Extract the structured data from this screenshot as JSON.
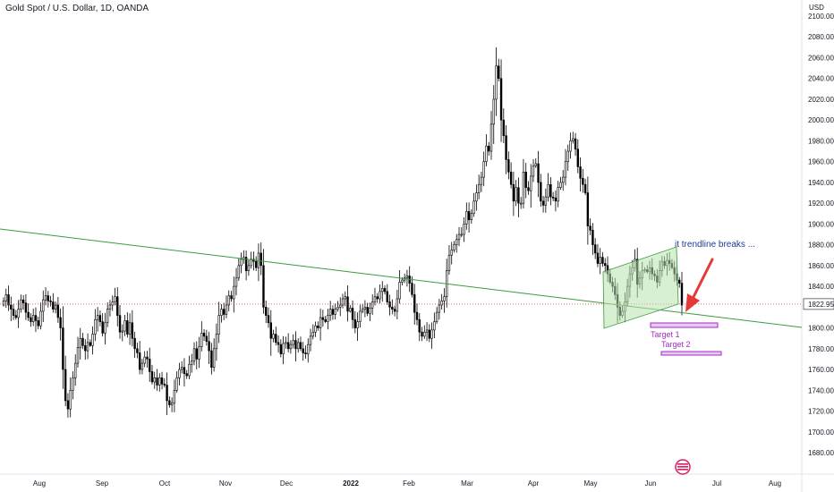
{
  "header": {
    "title": "Gold Spot / U.S. Dollar, 1D, OANDA",
    "currency": "USD"
  },
  "colors": {
    "up": "#ffffff",
    "down": "#000000",
    "trendline": "#3a9b3a",
    "channel_fill": "#b9e1b0",
    "channel_stroke": "#3a9b3a",
    "target": "#a32cc4",
    "target_fill": "#e6c8f0",
    "arrow": "#e53935",
    "price_line": "#e53935",
    "annotation": "#1f3a93"
  },
  "logo": {
    "icon": "tradingview-logo-icon"
  },
  "chart_data": {
    "type": "candlestick",
    "title": "Gold Spot / U.S. Dollar, 1D, OANDA",
    "ylim": [
      1665,
      2120
    ],
    "y_ticks": [
      "2100.000",
      "2080.000",
      "2060.000",
      "2040.000",
      "2020.000",
      "2000.000",
      "1980.000",
      "1960.000",
      "1940.000",
      "1920.000",
      "1900.000",
      "1880.000",
      "1860.000",
      "1840.000",
      "1822.955",
      "1800.000",
      "1780.000",
      "1760.000",
      "1740.000",
      "1720.000",
      "1700.000",
      "1680.000"
    ],
    "x_ticks": [
      "Aug",
      "Sep",
      "Oct",
      "Nov",
      "Dec",
      "2022",
      "Feb",
      "Mar",
      "Apr",
      "May",
      "Jun",
      "Jul",
      "Aug"
    ],
    "x_ticks_bold": [
      "2022"
    ],
    "current_price": "1822.955",
    "closes": [
      1826,
      1832,
      1822,
      1818,
      1812,
      1810,
      1818,
      1827,
      1824,
      1815,
      1810,
      1806,
      1812,
      1807,
      1802,
      1816,
      1827,
      1831,
      1826,
      1825,
      1818,
      1822,
      1810,
      1800,
      1760,
      1730,
      1722,
      1740,
      1752,
      1766,
      1781,
      1790,
      1783,
      1778,
      1786,
      1783,
      1794,
      1808,
      1812,
      1806,
      1795,
      1805,
      1818,
      1822,
      1825,
      1830,
      1812,
      1796,
      1797,
      1807,
      1794,
      1805,
      1790,
      1780,
      1776,
      1760,
      1766,
      1772,
      1770,
      1758,
      1748,
      1752,
      1745,
      1752,
      1746,
      1745,
      1730,
      1726,
      1728,
      1740,
      1752,
      1760,
      1762,
      1756,
      1754,
      1765,
      1768,
      1780,
      1770,
      1782,
      1795,
      1792,
      1787,
      1778,
      1762,
      1780,
      1794,
      1812,
      1818,
      1813,
      1822,
      1831,
      1828,
      1840,
      1848,
      1860,
      1866,
      1868,
      1855,
      1860,
      1866,
      1864,
      1858,
      1872,
      1860,
      1820,
      1812,
      1805,
      1790,
      1794,
      1786,
      1784,
      1775,
      1785,
      1786,
      1780,
      1784,
      1788,
      1780,
      1786,
      1780,
      1776,
      1775,
      1784,
      1792,
      1796,
      1802,
      1800,
      1810,
      1808,
      1806,
      1812,
      1818,
      1813,
      1818,
      1820,
      1822,
      1828,
      1830,
      1816,
      1819,
      1808,
      1800,
      1806,
      1816,
      1818,
      1820,
      1814,
      1819,
      1825,
      1830,
      1828,
      1835,
      1838,
      1835,
      1825,
      1820,
      1818,
      1816,
      1828,
      1844,
      1846,
      1848,
      1850,
      1843,
      1832,
      1815,
      1808,
      1796,
      1792,
      1796,
      1798,
      1790,
      1798,
      1806,
      1815,
      1822,
      1826,
      1830,
      1855,
      1870,
      1875,
      1880,
      1885,
      1890,
      1890,
      1900,
      1912,
      1904,
      1910,
      1922,
      1930,
      1938,
      1945,
      1960,
      1975,
      1970,
      1996,
      2020,
      2052,
      2040,
      2000,
      1985,
      1962,
      1950,
      1938,
      1922,
      1935,
      1920,
      1920,
      1950,
      1935,
      1932,
      1946,
      1956,
      1958,
      1940,
      1922,
      1918,
      1926,
      1938,
      1926,
      1925,
      1922,
      1935,
      1940,
      1945,
      1960,
      1970,
      1980,
      1982,
      1972,
      1955,
      1944,
      1938,
      1930,
      1898,
      1894,
      1880,
      1872,
      1862,
      1868,
      1862,
      1860,
      1852,
      1844,
      1840,
      1832,
      1820,
      1812,
      1816,
      1825,
      1840,
      1852,
      1858,
      1866,
      1842,
      1848,
      1855,
      1856,
      1854,
      1858,
      1852,
      1850,
      1844,
      1855,
      1864,
      1860,
      1865,
      1862,
      1858,
      1852,
      1846,
      1843,
      1822
    ]
  },
  "annotations": {
    "breakout_label": "it trendline breaks ...",
    "target1_label": "Target 1",
    "target2_label": "Target 2"
  }
}
